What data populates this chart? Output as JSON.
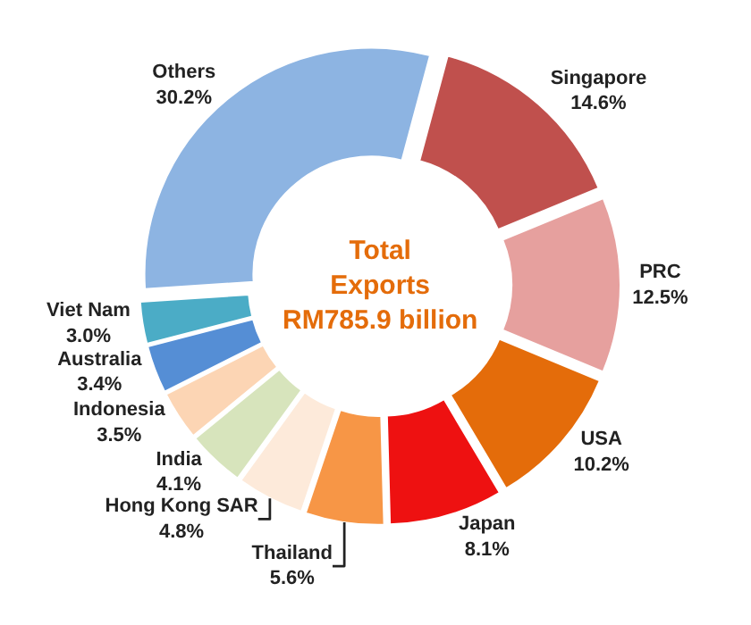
{
  "chart_data": {
    "type": "donut",
    "categories": [
      "Singapore",
      "PRC",
      "USA",
      "Japan",
      "Thailand",
      "Hong Kong SAR",
      "India",
      "Indonesia",
      "Australia",
      "Viet Nam",
      "Others"
    ],
    "values": [
      14.6,
      12.5,
      10.2,
      8.1,
      5.6,
      4.8,
      4.1,
      3.5,
      3.4,
      3.0,
      30.2
    ],
    "value_labels": [
      "14.6%",
      "12.5%",
      "10.2%",
      "8.1%",
      "5.6%",
      "4.8%",
      "4.1%",
      "3.5%",
      "3.4%",
      "3.0%",
      "30.2%"
    ],
    "colors": [
      "#c0504d",
      "#e6a09e",
      "#e46c0a",
      "#ee1111",
      "#f79646",
      "#fdeada",
      "#d7e4bc",
      "#fcd5b4",
      "#558ed5",
      "#4bacc6",
      "#8db4e2"
    ],
    "annotations": [
      "Total\nExports\nRM785.9 billion"
    ],
    "legend": false
  }
}
